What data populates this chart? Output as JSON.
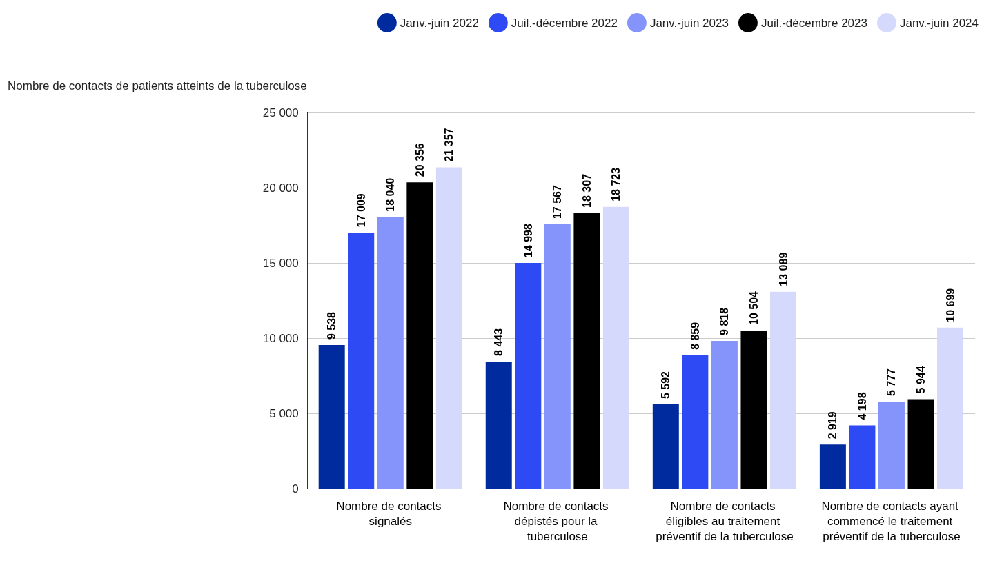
{
  "chart_data": {
    "type": "bar",
    "ylabel": "Nombre de contacts de patients atteints de la tuberculose",
    "categories": [
      "Nombre de contacts signalés",
      "Nombre de contacts dépistés pour la tuberculose",
      "Nombre de contacts éligibles au traitement préventif de la tuberculose",
      "Nombre de contacts ayant commencé le traitement préventif de la tuberculose"
    ],
    "series": [
      {
        "name": "Janv.-juin 2022",
        "color": "#002b9e",
        "values": [
          9538,
          8443,
          5592,
          2919
        ],
        "value_labels": [
          "9 538",
          "8 443",
          "5 592",
          "2 919"
        ]
      },
      {
        "name": "Juil.-décembre 2022",
        "color": "#2e4af5",
        "values": [
          17009,
          14998,
          8859,
          4198
        ],
        "value_labels": [
          "17 009",
          "14 998",
          "8 859",
          "4 198"
        ]
      },
      {
        "name": "Janv.-juin 2023",
        "color": "#8494fb",
        "values": [
          18040,
          17567,
          9818,
          5777
        ],
        "value_labels": [
          "18 040",
          "17 567",
          "9 818",
          "5 777"
        ]
      },
      {
        "name": "Juil.-décembre 2023",
        "color": "#000000",
        "values": [
          20356,
          18307,
          10504,
          5944
        ],
        "value_labels": [
          "20 356",
          "18 307",
          "10 504",
          "5 944"
        ]
      },
      {
        "name": "Janv.-juin 2024",
        "color": "#d5dafd",
        "values": [
          21357,
          18723,
          13089,
          10699
        ],
        "value_labels": [
          "21 357",
          "18 723",
          "13 089",
          "10 699"
        ]
      }
    ],
    "ylim": [
      0,
      25000
    ],
    "yticks": [
      {
        "value": 0,
        "label": "0"
      },
      {
        "value": 5000,
        "label": "5 000"
      },
      {
        "value": 10000,
        "label": "10 000"
      },
      {
        "value": 15000,
        "label": "15 000"
      },
      {
        "value": 20000,
        "label": "20 000"
      },
      {
        "value": 25000,
        "label": "25 000"
      }
    ],
    "grid": "y",
    "legend": "top right"
  }
}
